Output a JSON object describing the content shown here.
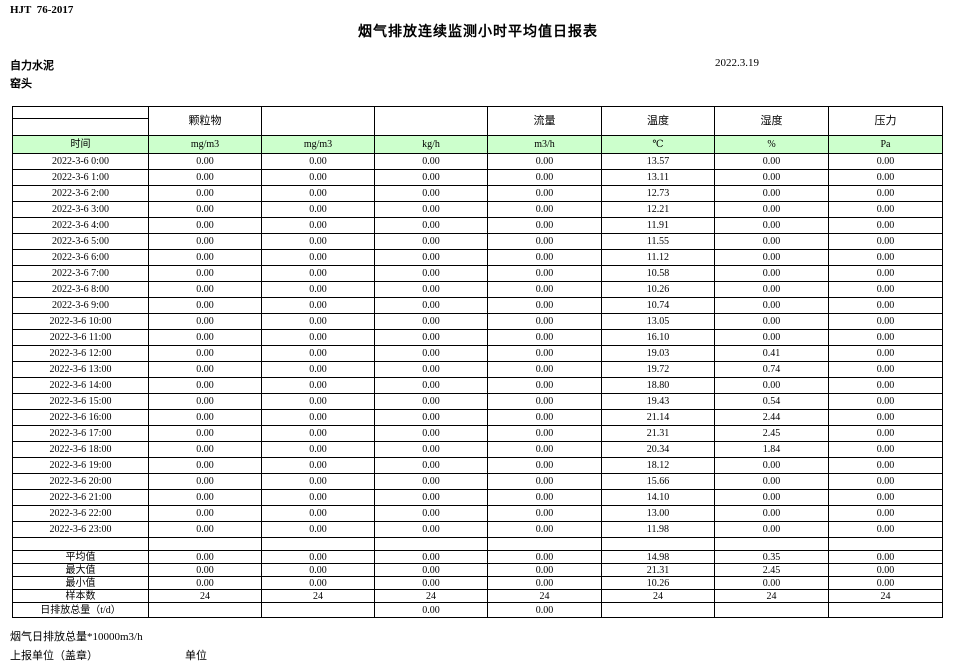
{
  "page": {
    "standard": "HJT  76-2017",
    "title": "烟气排放连续监测小时平均值日报表",
    "company": "自力水泥",
    "location": "窑头",
    "date": "2022.3.19"
  },
  "table": {
    "group_headers": [
      "颗粒物",
      "",
      "",
      "流量",
      "温度",
      "湿度",
      "压力"
    ],
    "units": [
      "时间",
      "mg/m3",
      "mg/m3",
      "kg/h",
      "m3/h",
      "℃",
      "%",
      "Pa"
    ],
    "rows": [
      {
        "time": "2022-3-6 0:00",
        "values": [
          "0.00",
          "0.00",
          "0.00",
          "0.00",
          "13.57",
          "0.00",
          "0.00"
        ]
      },
      {
        "time": "2022-3-6 1:00",
        "values": [
          "0.00",
          "0.00",
          "0.00",
          "0.00",
          "13.11",
          "0.00",
          "0.00"
        ]
      },
      {
        "time": "2022-3-6 2:00",
        "values": [
          "0.00",
          "0.00",
          "0.00",
          "0.00",
          "12.73",
          "0.00",
          "0.00"
        ]
      },
      {
        "time": "2022-3-6 3:00",
        "values": [
          "0.00",
          "0.00",
          "0.00",
          "0.00",
          "12.21",
          "0.00",
          "0.00"
        ]
      },
      {
        "time": "2022-3-6 4:00",
        "values": [
          "0.00",
          "0.00",
          "0.00",
          "0.00",
          "11.91",
          "0.00",
          "0.00"
        ]
      },
      {
        "time": "2022-3-6 5:00",
        "values": [
          "0.00",
          "0.00",
          "0.00",
          "0.00",
          "11.55",
          "0.00",
          "0.00"
        ]
      },
      {
        "time": "2022-3-6 6:00",
        "values": [
          "0.00",
          "0.00",
          "0.00",
          "0.00",
          "11.12",
          "0.00",
          "0.00"
        ]
      },
      {
        "time": "2022-3-6 7:00",
        "values": [
          "0.00",
          "0.00",
          "0.00",
          "0.00",
          "10.58",
          "0.00",
          "0.00"
        ]
      },
      {
        "time": "2022-3-6 8:00",
        "values": [
          "0.00",
          "0.00",
          "0.00",
          "0.00",
          "10.26",
          "0.00",
          "0.00"
        ]
      },
      {
        "time": "2022-3-6 9:00",
        "values": [
          "0.00",
          "0.00",
          "0.00",
          "0.00",
          "10.74",
          "0.00",
          "0.00"
        ]
      },
      {
        "time": "2022-3-6 10:00",
        "values": [
          "0.00",
          "0.00",
          "0.00",
          "0.00",
          "13.05",
          "0.00",
          "0.00"
        ]
      },
      {
        "time": "2022-3-6 11:00",
        "values": [
          "0.00",
          "0.00",
          "0.00",
          "0.00",
          "16.10",
          "0.00",
          "0.00"
        ]
      },
      {
        "time": "2022-3-6 12:00",
        "values": [
          "0.00",
          "0.00",
          "0.00",
          "0.00",
          "19.03",
          "0.41",
          "0.00"
        ]
      },
      {
        "time": "2022-3-6 13:00",
        "values": [
          "0.00",
          "0.00",
          "0.00",
          "0.00",
          "19.72",
          "0.74",
          "0.00"
        ]
      },
      {
        "time": "2022-3-6 14:00",
        "values": [
          "0.00",
          "0.00",
          "0.00",
          "0.00",
          "18.80",
          "0.00",
          "0.00"
        ]
      },
      {
        "time": "2022-3-6 15:00",
        "values": [
          "0.00",
          "0.00",
          "0.00",
          "0.00",
          "19.43",
          "0.54",
          "0.00"
        ]
      },
      {
        "time": "2022-3-6 16:00",
        "values": [
          "0.00",
          "0.00",
          "0.00",
          "0.00",
          "21.14",
          "2.44",
          "0.00"
        ]
      },
      {
        "time": "2022-3-6 17:00",
        "values": [
          "0.00",
          "0.00",
          "0.00",
          "0.00",
          "21.31",
          "2.45",
          "0.00"
        ]
      },
      {
        "time": "2022-3-6 18:00",
        "values": [
          "0.00",
          "0.00",
          "0.00",
          "0.00",
          "20.34",
          "1.84",
          "0.00"
        ]
      },
      {
        "time": "2022-3-6 19:00",
        "values": [
          "0.00",
          "0.00",
          "0.00",
          "0.00",
          "18.12",
          "0.00",
          "0.00"
        ]
      },
      {
        "time": "2022-3-6 20:00",
        "values": [
          "0.00",
          "0.00",
          "0.00",
          "0.00",
          "15.66",
          "0.00",
          "0.00"
        ]
      },
      {
        "time": "2022-3-6 21:00",
        "values": [
          "0.00",
          "0.00",
          "0.00",
          "0.00",
          "14.10",
          "0.00",
          "0.00"
        ]
      },
      {
        "time": "2022-3-6 22:00",
        "values": [
          "0.00",
          "0.00",
          "0.00",
          "0.00",
          "13.00",
          "0.00",
          "0.00"
        ]
      },
      {
        "time": "2022-3-6 23:00",
        "values": [
          "0.00",
          "0.00",
          "0.00",
          "0.00",
          "11.98",
          "0.00",
          "0.00"
        ]
      }
    ],
    "summary": [
      {
        "label": "平均值",
        "values": [
          "0.00",
          "0.00",
          "0.00",
          "0.00",
          "14.98",
          "0.35",
          "0.00"
        ]
      },
      {
        "label": "最大值",
        "values": [
          "0.00",
          "0.00",
          "0.00",
          "0.00",
          "21.31",
          "2.45",
          "0.00"
        ]
      },
      {
        "label": "最小值",
        "values": [
          "0.00",
          "0.00",
          "0.00",
          "0.00",
          "10.26",
          "0.00",
          "0.00"
        ]
      },
      {
        "label": "样本数",
        "values": [
          "24",
          "24",
          "24",
          "24",
          "24",
          "24",
          "24"
        ]
      },
      {
        "label": "日排放总量（t/d）",
        "values": [
          "",
          "",
          "0.00",
          "0.00",
          "",
          "",
          ""
        ]
      }
    ]
  },
  "footer": {
    "note1": "烟气日排放总量*10000m3/h",
    "note2": "上报单位（盖章）",
    "note3": "单位"
  },
  "colors": {
    "header_green": "#ccffcc",
    "border": "#000000",
    "background": "#ffffff"
  }
}
